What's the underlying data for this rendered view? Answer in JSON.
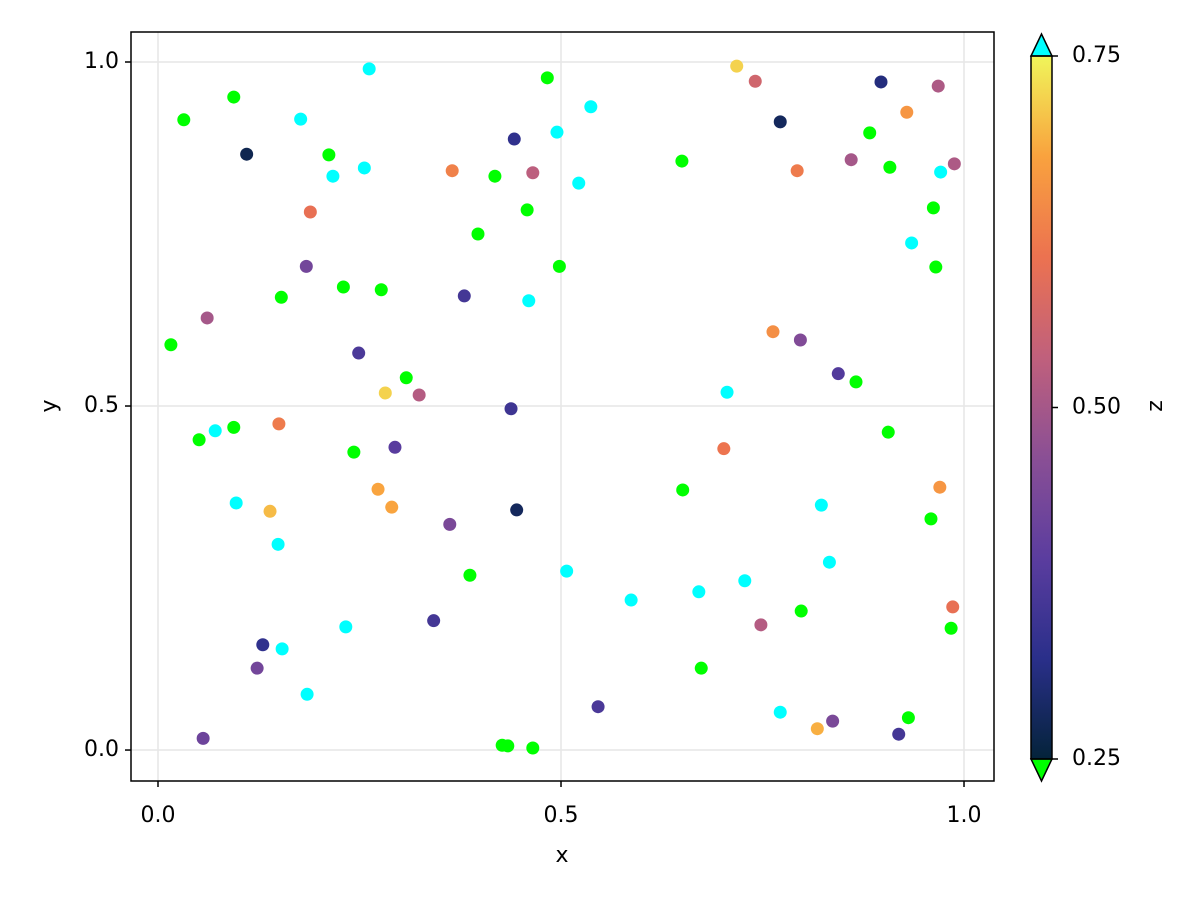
{
  "chart_data": {
    "type": "scatter",
    "xlabel": "x",
    "ylabel": "y",
    "xlim": [
      -0.0335,
      1.0372
    ],
    "ylim": [
      -0.045,
      1.0436
    ],
    "xticks": [
      {
        "value": 0,
        "label": "0.0"
      },
      0.5,
      {
        "value": 1,
        "label": "1.0"
      }
    ],
    "yticks": [
      {
        "value": 0,
        "label": "0.0"
      },
      0.5,
      {
        "value": 1,
        "label": "1.0"
      }
    ],
    "grid": true,
    "x": [
      0.032,
      0.094,
      0.11,
      0.177,
      0.262,
      0.212,
      0.217,
      0.256,
      0.189,
      0.184,
      0.061,
      0.016,
      0.153,
      0.23,
      0.277,
      0.249,
      0.282,
      0.308,
      0.324,
      0.071,
      0.051,
      0.094,
      0.15,
      0.243,
      0.294,
      0.097,
      0.139,
      0.273,
      0.29,
      0.149,
      0.362,
      0.387,
      0.233,
      0.342,
      0.13,
      0.154,
      0.123,
      0.185,
      0.056,
      0.365,
      0.418,
      0.397,
      0.38,
      0.442,
      0.483,
      0.465,
      0.458,
      0.495,
      0.537,
      0.522,
      0.498,
      0.46,
      0.438,
      0.445,
      0.507,
      0.587,
      0.427,
      0.434,
      0.465,
      0.546,
      0.65,
      0.718,
      0.741,
      0.772,
      0.793,
      0.763,
      0.797,
      0.706,
      0.702,
      0.651,
      0.671,
      0.728,
      0.674,
      0.748,
      0.772,
      0.818,
      0.837,
      0.798,
      0.823,
      0.833,
      0.844,
      0.866,
      0.86,
      0.897,
      0.883,
      0.908,
      0.929,
      0.968,
      0.988,
      0.971,
      0.962,
      0.935,
      0.965,
      0.906,
      0.97,
      0.959,
      0.986,
      0.984,
      0.931,
      0.919
    ],
    "y": [
      0.916,
      0.949,
      0.866,
      0.917,
      0.99,
      0.865,
      0.834,
      0.846,
      0.782,
      0.703,
      0.628,
      0.589,
      0.658,
      0.673,
      0.669,
      0.577,
      0.519,
      0.541,
      0.516,
      0.464,
      0.451,
      0.469,
      0.474,
      0.433,
      0.44,
      0.359,
      0.347,
      0.379,
      0.353,
      0.299,
      0.328,
      0.254,
      0.179,
      0.188,
      0.153,
      0.147,
      0.119,
      0.081,
      0.017,
      0.842,
      0.834,
      0.75,
      0.66,
      0.888,
      0.977,
      0.839,
      0.785,
      0.898,
      0.935,
      0.824,
      0.703,
      0.653,
      0.496,
      0.349,
      0.26,
      0.218,
      0.007,
      0.006,
      0.003,
      0.063,
      0.856,
      0.994,
      0.972,
      0.913,
      0.842,
      0.608,
      0.596,
      0.52,
      0.438,
      0.378,
      0.23,
      0.246,
      0.119,
      0.182,
      0.055,
      0.031,
      0.042,
      0.202,
      0.356,
      0.273,
      0.547,
      0.535,
      0.858,
      0.971,
      0.897,
      0.847,
      0.927,
      0.965,
      0.852,
      0.84,
      0.788,
      0.737,
      0.702,
      0.462,
      0.382,
      0.336,
      0.208,
      0.177,
      0.047,
      0.023
    ],
    "z": [
      0.2,
      0.2,
      0.27,
      0.8,
      0.8,
      0.2,
      0.8,
      0.8,
      0.6,
      0.43,
      0.5,
      0.2,
      0.2,
      0.2,
      0.2,
      0.37,
      0.72,
      0.2,
      0.52,
      0.8,
      0.2,
      0.2,
      0.62,
      0.2,
      0.39,
      0.8,
      0.7,
      0.68,
      0.68,
      0.8,
      0.44,
      0.2,
      0.8,
      0.36,
      0.33,
      0.8,
      0.43,
      0.8,
      0.42,
      0.63,
      0.2,
      0.2,
      0.36,
      0.33,
      0.2,
      0.53,
      0.2,
      0.8,
      0.8,
      0.8,
      0.2,
      0.8,
      0.35,
      0.28,
      0.8,
      0.8,
      0.2,
      0.2,
      0.2,
      0.37,
      0.2,
      0.72,
      0.56,
      0.28,
      0.62,
      0.65,
      0.45,
      0.8,
      0.61,
      0.2,
      0.8,
      0.8,
      0.2,
      0.52,
      0.8,
      0.69,
      0.44,
      0.2,
      0.8,
      0.8,
      0.38,
      0.2,
      0.5,
      0.31,
      0.2,
      0.2,
      0.66,
      0.51,
      0.51,
      0.8,
      0.2,
      0.8,
      0.2,
      0.2,
      0.66,
      0.2,
      0.6,
      0.2,
      0.2,
      0.36
    ],
    "colorbar": {
      "label": "z",
      "limits": [
        0.25,
        0.75
      ],
      "ticks": [
        0.25,
        {
          "value": 0.5,
          "label": "0.50"
        },
        0.75
      ],
      "colormap": [
        "#04233a",
        "#2a2f8a",
        "#5b3d9f",
        "#8a4f95",
        "#c0607c",
        "#ec7250",
        "#f9a23e",
        "#f0f55a"
      ],
      "lowclip": "#00ff00",
      "highclip": "#00ffff"
    }
  }
}
